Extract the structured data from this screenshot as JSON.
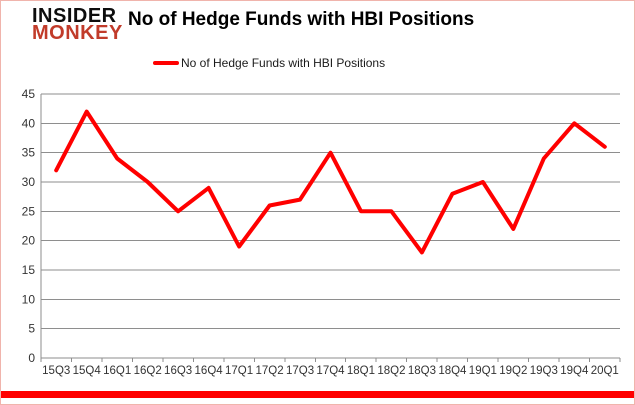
{
  "header": {
    "logo": {
      "line1": "INSIDER",
      "line2": "MONKEY"
    },
    "title": "No of Hedge Funds with HBI Positions"
  },
  "legend": {
    "label": "No of Hedge Funds with HBI Positions"
  },
  "chart_data": {
    "type": "line",
    "title": "No of Hedge Funds with HBI Positions",
    "categories": [
      "15Q3",
      "15Q4",
      "16Q1",
      "16Q2",
      "16Q3",
      "16Q4",
      "17Q1",
      "17Q2",
      "17Q3",
      "17Q4",
      "18Q1",
      "18Q2",
      "18Q3",
      "18Q4",
      "19Q1",
      "19Q2",
      "19Q3",
      "19Q4",
      "20Q1"
    ],
    "values": [
      32,
      42,
      34,
      30,
      25,
      29,
      19,
      26,
      27,
      35,
      25,
      25,
      18,
      28,
      30,
      22,
      34,
      40,
      36
    ],
    "xlabel": "",
    "ylabel": "",
    "ylim": [
      0,
      45
    ],
    "ytick_step": 5,
    "grid": true,
    "legend_position": "top",
    "series": [
      {
        "name": "No of Hedge Funds with HBI Positions",
        "color": "#ff0000"
      }
    ]
  },
  "colors": {
    "series_red": "#ff0000",
    "logo_red": "#c13b2a",
    "border_pink": "#f0b4ac",
    "bottom_bar_red": "#ff0000",
    "grid_gray": "#8e8e8e",
    "label_gray": "#333333"
  }
}
